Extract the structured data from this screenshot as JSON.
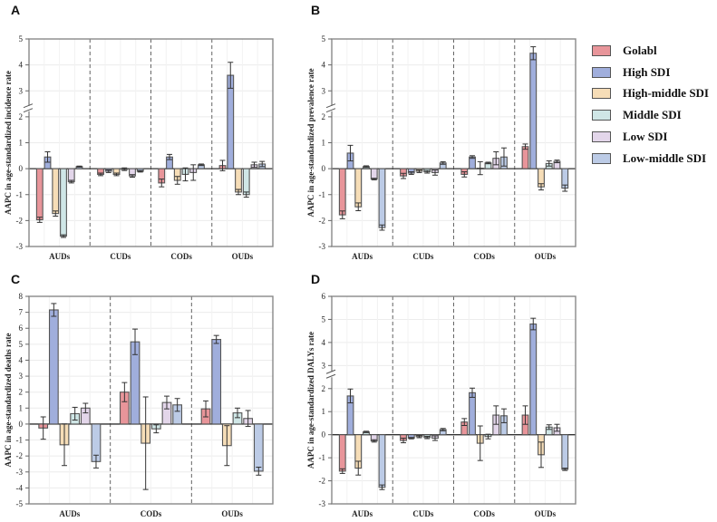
{
  "colors": {
    "Golabl": "#e8959a",
    "High SDI": "#a0aedc",
    "High-middle SDI": "#f6ddb7",
    "Middle SDI": "#cfe6e6",
    "Low SDI": "#e3d6ea",
    "Low-middle SDI": "#bccbe6"
  },
  "legend": {
    "items": [
      "Golabl",
      "High SDI",
      "High-middle SDI",
      "Middle SDI",
      "Low SDI",
      "Low-middle SDI"
    ]
  },
  "chart_data": [
    {
      "panel": "A",
      "type": "bar",
      "ylabel": "AAPC in age-standardized incidence rate",
      "categories": [
        "AUDs",
        "CUDs",
        "CODs",
        "OUDs"
      ],
      "groups": [
        "Golabl",
        "High SDI",
        "High-middle SDI",
        "Middle SDI",
        "Low SDI",
        "Low-middle SDI"
      ],
      "ylim": [
        -3,
        5
      ],
      "yticks": [
        -3,
        -2,
        -1,
        0,
        1,
        2,
        3,
        4,
        5
      ],
      "axis_break": true,
      "values": [
        [
          -1.97,
          0.45,
          -1.73,
          -2.6,
          -0.5,
          0.08
        ],
        [
          -0.22,
          -0.1,
          -0.22,
          -0.02,
          -0.28,
          -0.1
        ],
        [
          -0.55,
          0.45,
          -0.45,
          -0.22,
          -0.15,
          0.15
        ],
        [
          0.12,
          3.6,
          -0.9,
          -1.0,
          0.15,
          0.18
        ]
      ],
      "errors": [
        [
          0.1,
          0.2,
          0.1,
          0.05,
          0.05,
          0.02
        ],
        [
          0.05,
          0.05,
          0.05,
          0.05,
          0.05,
          0.03
        ],
        [
          0.15,
          0.1,
          0.15,
          0.25,
          0.3,
          0.03
        ],
        [
          0.2,
          0.5,
          0.1,
          0.1,
          0.1,
          0.1
        ]
      ]
    },
    {
      "panel": "B",
      "type": "bar",
      "ylabel": "AAPC in age-standardized prevalence rate",
      "categories": [
        "AUDs",
        "CUDs",
        "CODs",
        "OUDs"
      ],
      "groups": [
        "Golabl",
        "High SDI",
        "High-middle SDI",
        "Middle SDI",
        "Low SDI",
        "Low-middle SDI"
      ],
      "ylim": [
        -3,
        5
      ],
      "yticks": [
        -3,
        -2,
        -1,
        0,
        1,
        2,
        3,
        4,
        5
      ],
      "axis_break": true,
      "values": [
        [
          -1.78,
          0.6,
          -1.47,
          0.08,
          -0.4,
          -2.27
        ],
        [
          -0.28,
          -0.17,
          -0.1,
          -0.12,
          -0.15,
          0.22
        ],
        [
          -0.22,
          0.45,
          0.02,
          0.22,
          0.4,
          0.45
        ],
        [
          0.85,
          4.45,
          -0.7,
          0.2,
          0.28,
          -0.75
        ]
      ],
      "errors": [
        [
          0.15,
          0.3,
          0.15,
          0.03,
          0.03,
          0.1
        ],
        [
          0.1,
          0.05,
          0.05,
          0.05,
          0.1,
          0.05
        ],
        [
          0.1,
          0.05,
          0.25,
          0.03,
          0.25,
          0.35
        ],
        [
          0.1,
          0.25,
          0.12,
          0.1,
          0.05,
          0.12
        ]
      ]
    },
    {
      "panel": "C",
      "type": "bar",
      "ylabel": "AAPC in age-standardized deaths rate",
      "categories": [
        "AUDs",
        "CODs",
        "OUDs"
      ],
      "groups": [
        "Golabl",
        "High SDI",
        "High-middle SDI",
        "Middle SDI",
        "Low SDI",
        "Low-middle SDI"
      ],
      "ylim": [
        -5,
        8
      ],
      "yticks": [
        -5,
        -4,
        -3,
        -2,
        -1,
        0,
        1,
        2,
        3,
        4,
        5,
        6,
        7,
        8
      ],
      "axis_break": false,
      "values": [
        [
          -0.25,
          7.15,
          -1.3,
          0.65,
          1.0,
          -2.35
        ],
        [
          2.0,
          5.15,
          -1.2,
          -0.3,
          1.35,
          1.2
        ],
        [
          0.95,
          5.3,
          -1.35,
          0.7,
          0.35,
          -2.95
        ]
      ],
      "errors": [
        [
          0.7,
          0.4,
          1.3,
          0.4,
          0.3,
          0.4
        ],
        [
          0.6,
          0.8,
          2.9,
          0.25,
          0.4,
          0.4
        ],
        [
          0.5,
          0.25,
          1.25,
          0.3,
          0.5,
          0.25
        ]
      ]
    },
    {
      "panel": "D",
      "type": "bar",
      "ylabel": "AAPC in age-standardized DALYs rate",
      "categories": [
        "AUDs",
        "CUDs",
        "CODs",
        "OUDs"
      ],
      "groups": [
        "Golabl",
        "High SDI",
        "High-middle SDI",
        "Middle SDI",
        "Low SDI",
        "Low-middle SDI"
      ],
      "ylim": [
        -3,
        6
      ],
      "yticks": [
        -3,
        -2,
        -1,
        0,
        1,
        2,
        3,
        4,
        5,
        6
      ],
      "axis_break": true,
      "values": [
        [
          -1.58,
          1.68,
          -1.45,
          0.12,
          -0.27,
          -2.28
        ],
        [
          -0.25,
          -0.15,
          -0.08,
          -0.12,
          -0.15,
          0.22
        ],
        [
          0.55,
          1.82,
          -0.37,
          -0.08,
          0.85,
          0.82
        ],
        [
          0.85,
          4.8,
          -0.87,
          0.33,
          0.3,
          -1.5
        ]
      ],
      "errors": [
        [
          0.1,
          0.3,
          0.3,
          0.03,
          0.05,
          0.1
        ],
        [
          0.1,
          0.03,
          0.05,
          0.05,
          0.1,
          0.05
        ],
        [
          0.15,
          0.2,
          0.75,
          0.1,
          0.4,
          0.3
        ],
        [
          0.4,
          0.25,
          0.55,
          0.1,
          0.15,
          0.05
        ]
      ]
    }
  ]
}
